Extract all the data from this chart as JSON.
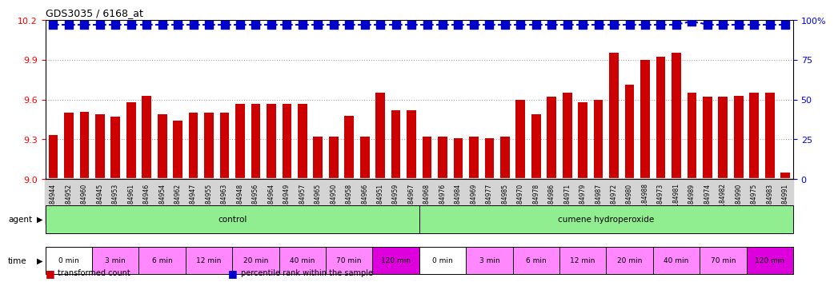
{
  "title": "GDS3035 / 6168_at",
  "bar_color": "#cc0000",
  "dot_color": "#0000cc",
  "ylim": [
    9.0,
    10.2
  ],
  "yticks": [
    9.0,
    9.3,
    9.6,
    9.9,
    10.2
  ],
  "y2lim": [
    0,
    100
  ],
  "y2ticks": [
    0,
    25,
    50,
    75,
    100
  ],
  "sample_ids": [
    "GSM184944",
    "GSM184952",
    "GSM184960",
    "GSM184945",
    "GSM184953",
    "GSM184961",
    "GSM184946",
    "GSM184954",
    "GSM184962",
    "GSM184947",
    "GSM184955",
    "GSM184963",
    "GSM184948",
    "GSM184956",
    "GSM184964",
    "GSM184949",
    "GSM184957",
    "GSM184965",
    "GSM184950",
    "GSM184958",
    "GSM184966",
    "GSM184951",
    "GSM184959",
    "GSM184967",
    "GSM184968",
    "GSM184976",
    "GSM184984",
    "GSM184969",
    "GSM184977",
    "GSM184985",
    "GSM184970",
    "GSM184978",
    "GSM184986",
    "GSM184971",
    "GSM184979",
    "GSM184987",
    "GSM184972",
    "GSM184980",
    "GSM184988",
    "GSM184973",
    "GSM184981",
    "GSM184989",
    "GSM184974",
    "GSM184982",
    "GSM184990",
    "GSM184975",
    "GSM184983",
    "GSM184991"
  ],
  "bar_values": [
    9.33,
    9.5,
    9.51,
    9.49,
    9.47,
    9.58,
    9.63,
    9.49,
    9.44,
    9.5,
    9.5,
    9.5,
    9.57,
    9.57,
    9.57,
    9.57,
    9.57,
    9.32,
    9.32,
    9.48,
    9.32,
    9.65,
    9.52,
    9.52,
    9.32,
    9.32,
    9.31,
    9.32,
    9.31,
    9.32,
    9.6,
    9.49,
    9.62,
    9.65,
    9.58,
    9.6,
    9.95,
    9.71,
    9.9,
    9.92,
    9.95,
    9.65,
    9.62,
    9.62,
    9.63,
    9.65,
    9.65,
    9.05
  ],
  "percentile_values": [
    97,
    97,
    97,
    97,
    97,
    97,
    97,
    97,
    97,
    97,
    97,
    97,
    97,
    97,
    97,
    97,
    97,
    97,
    97,
    97,
    97,
    97,
    97,
    97,
    97,
    97,
    97,
    97,
    97,
    97,
    97,
    97,
    97,
    97,
    97,
    97,
    97,
    97,
    97,
    97,
    97,
    99,
    97,
    97,
    97,
    97,
    97,
    97
  ],
  "agent_groups": [
    {
      "label": "control",
      "color": "#90ee90",
      "span": [
        0,
        24
      ]
    },
    {
      "label": "cumene hydroperoxide",
      "color": "#90ee90",
      "span": [
        24,
        48
      ]
    }
  ],
  "time_groups": [
    {
      "label": "0 min",
      "color": "#ffffff",
      "span": [
        0,
        3
      ]
    },
    {
      "label": "3 min",
      "color": "#ff99ff",
      "span": [
        3,
        6
      ]
    },
    {
      "label": "6 min",
      "color": "#ff99ff",
      "span": [
        6,
        9
      ]
    },
    {
      "label": "12 min",
      "color": "#ff99ff",
      "span": [
        9,
        12
      ]
    },
    {
      "label": "20 min",
      "color": "#ff99ff",
      "span": [
        12,
        15
      ]
    },
    {
      "label": "40 min",
      "color": "#ff99ff",
      "span": [
        15,
        18
      ]
    },
    {
      "label": "70 min",
      "color": "#ff99ff",
      "span": [
        18,
        21
      ]
    },
    {
      "label": "120 min",
      "color": "#ff44ff",
      "span": [
        21,
        24
      ]
    },
    {
      "label": "0 min",
      "color": "#ffffff",
      "span": [
        24,
        27
      ]
    },
    {
      "label": "3 min",
      "color": "#ff99ff",
      "span": [
        27,
        30
      ]
    },
    {
      "label": "6 min",
      "color": "#ff99ff",
      "span": [
        30,
        33
      ]
    },
    {
      "label": "12 min",
      "color": "#ff99ff",
      "span": [
        33,
        36
      ]
    },
    {
      "label": "20 min",
      "color": "#ff99ff",
      "span": [
        36,
        39
      ]
    },
    {
      "label": "40 min",
      "color": "#ff99ff",
      "span": [
        39,
        42
      ]
    },
    {
      "label": "70 min",
      "color": "#ff99ff",
      "span": [
        42,
        45
      ]
    },
    {
      "label": "120 min",
      "color": "#ff44ff",
      "span": [
        45,
        48
      ]
    }
  ],
  "legend_items": [
    {
      "label": "transformed count",
      "color": "#cc0000"
    },
    {
      "label": "percentile rank within the sample",
      "color": "#0000cc"
    }
  ]
}
